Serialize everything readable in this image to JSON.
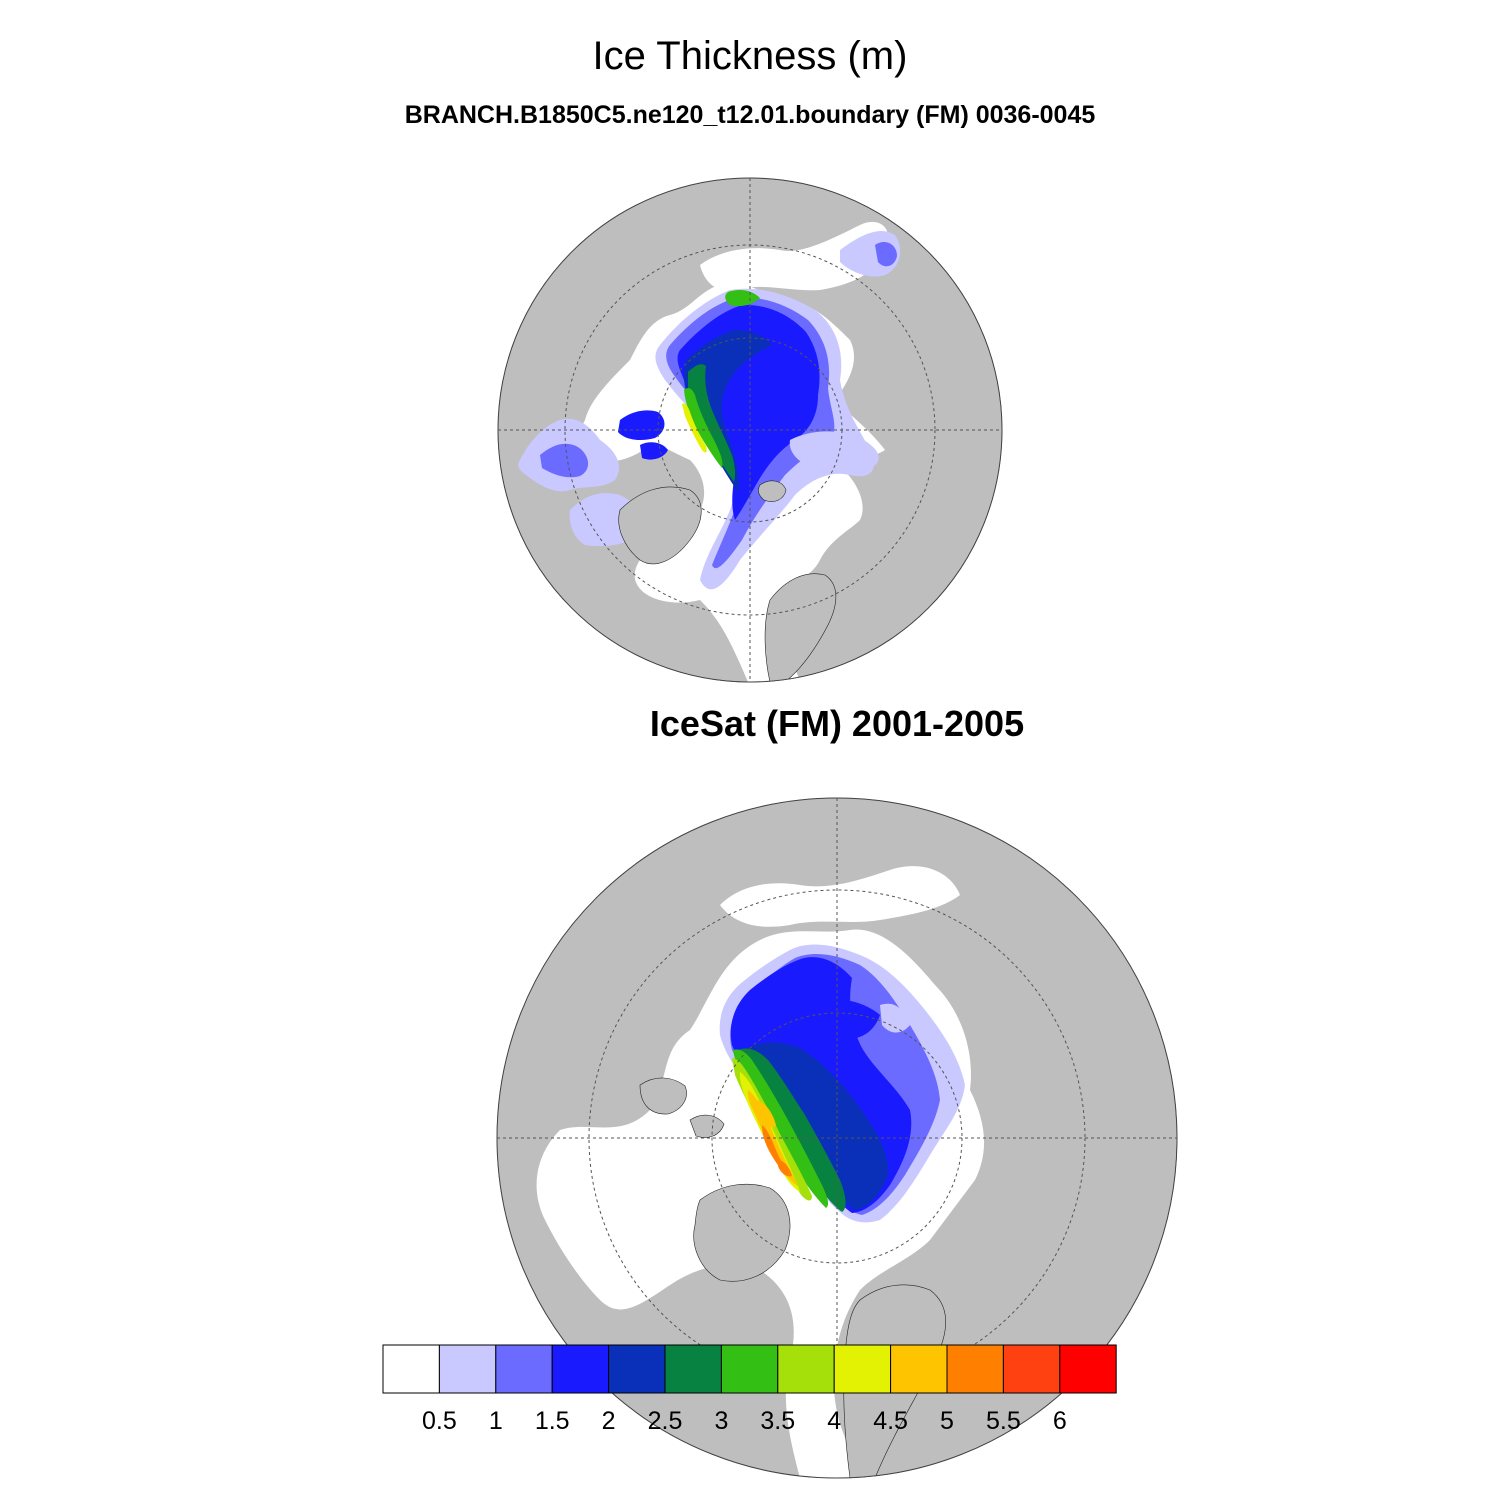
{
  "header": {
    "title": "Ice Thickness (m)",
    "subtitle": "BRANCH.B1850C5.ne120_t12.01.boundary (FM) 0036-0045"
  },
  "panels": [
    {
      "id": "model",
      "title": ""
    },
    {
      "id": "icesat",
      "title": "IceSat (FM) 2001-2005"
    }
  ],
  "colors": {
    "land": "#bebebe",
    "ocean": "#ffffff",
    "bins": [
      "#ffffff",
      "#c9c9ff",
      "#6b6bff",
      "#1a1aff",
      "#0a2fb8",
      "#088240",
      "#34bf14",
      "#a6e00b",
      "#e3f202",
      "#ffc400",
      "#ff8000",
      "#ff4010",
      "#ff0000"
    ]
  },
  "colorbar": {
    "labels": [
      "0.5",
      "1",
      "1.5",
      "2",
      "2.5",
      "3",
      "3.5",
      "4",
      "4.5",
      "5",
      "5.5",
      "6"
    ]
  }
}
